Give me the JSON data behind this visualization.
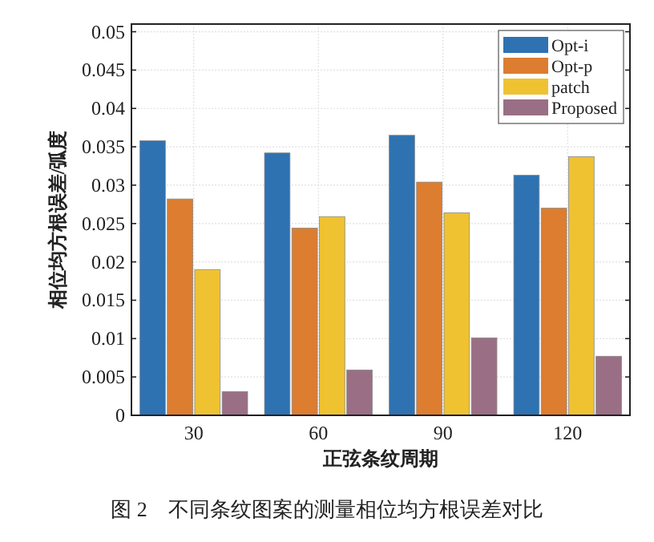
{
  "chart_data": {
    "type": "bar",
    "xlabel": "正弦条纹周期",
    "ylabel": "相位均方根误差/弧度",
    "categories": [
      "30",
      "60",
      "90",
      "120"
    ],
    "series": [
      {
        "name": "Opt-i",
        "color": "#2e72b2",
        "values": [
          0.0358,
          0.0342,
          0.0365,
          0.0313
        ]
      },
      {
        "name": "Opt-p",
        "color": "#dc7d30",
        "values": [
          0.0282,
          0.0244,
          0.0304,
          0.027
        ]
      },
      {
        "name": "patch",
        "color": "#efc232",
        "values": [
          0.019,
          0.0259,
          0.0264,
          0.0337
        ]
      },
      {
        "name": "Proposed",
        "color": "#9a6f85",
        "values": [
          0.0031,
          0.0059,
          0.0101,
          0.0077
        ]
      }
    ],
    "ylim": [
      0,
      0.051
    ],
    "yticks": [
      0,
      0.005,
      0.01,
      0.015,
      0.02,
      0.025,
      0.03,
      0.035,
      0.04,
      0.045,
      0.05
    ],
    "grid": true,
    "legend": "top right",
    "annotations": [
      "图 2　不同条纹图案的测量相位均方根误差对比"
    ]
  }
}
